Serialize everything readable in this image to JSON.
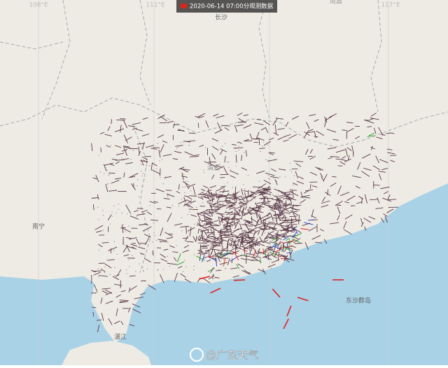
{
  "header": {
    "title": "2020-06-14 07:00分观测数据"
  },
  "lon_labels": [
    "108°E",
    "111°E",
    "117°E"
  ],
  "places": [
    "长沙",
    "南昌",
    "南宁",
    "清远",
    "东沙群岛",
    "湛江"
  ],
  "watermark": "@广东天气"
}
